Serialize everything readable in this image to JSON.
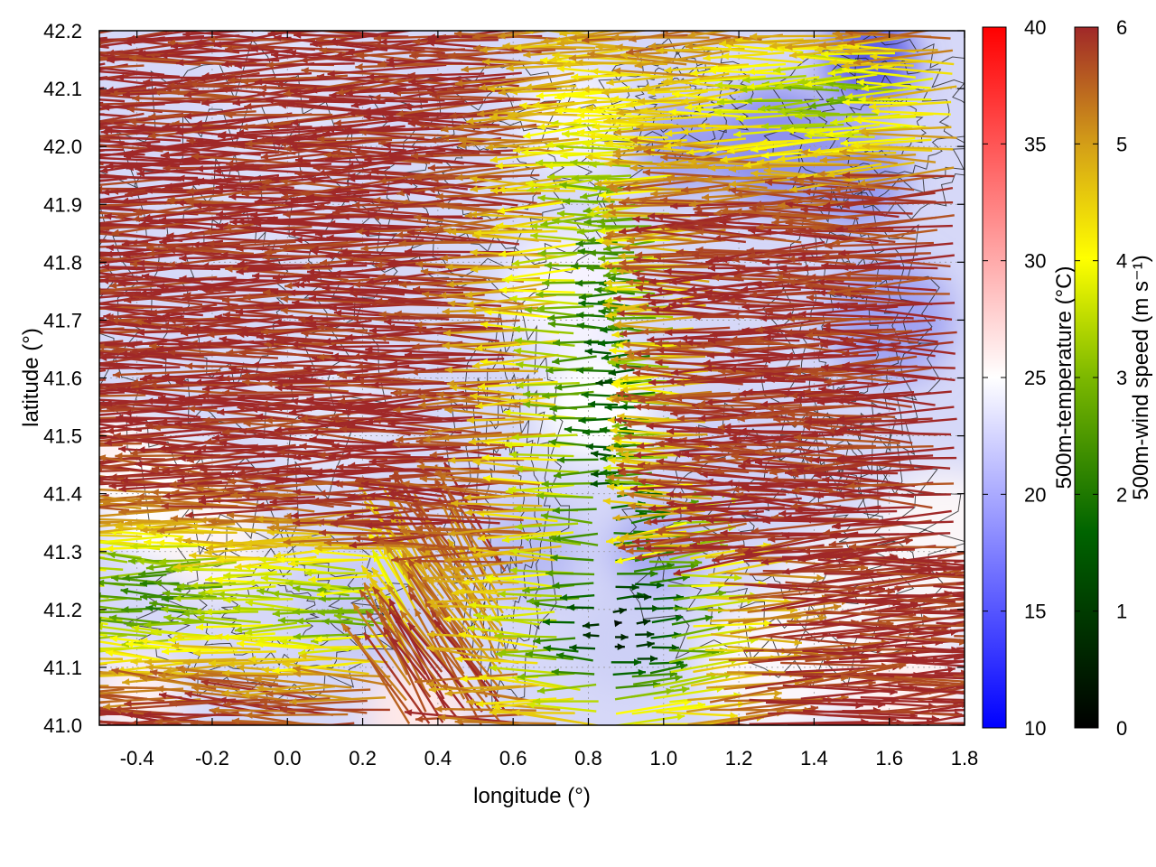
{
  "chart_data": {
    "type": "heatmap",
    "subtype": "vector-field-over-temperature-map",
    "title": "",
    "xlabel": "longitude (°)",
    "ylabel": "latitude (°)",
    "xlim": [
      -0.5,
      1.8
    ],
    "ylim": [
      41.0,
      42.2
    ],
    "xticks": [
      "-0.4",
      "-0.2",
      "0.0",
      "0.2",
      "0.4",
      "0.6",
      "0.8",
      "1.0",
      "1.2",
      "1.4",
      "1.6",
      "1.8"
    ],
    "yticks": [
      "41.0",
      "41.1",
      "41.2",
      "41.3",
      "41.4",
      "41.5",
      "41.6",
      "41.7",
      "41.8",
      "41.9",
      "42.0",
      "42.1",
      "42.2"
    ],
    "grid": true,
    "contours": true,
    "temperature_colorbar": {
      "label": "500m-temperature (°C)",
      "range": [
        10,
        40
      ],
      "ticks": [
        "10",
        "15",
        "20",
        "25",
        "30",
        "35",
        "40"
      ],
      "colors": [
        "#0000ff",
        "#ffffff",
        "#ff0000"
      ]
    },
    "wind_colorbar": {
      "label": "500m-wind speed (m s⁻¹)",
      "range": [
        0,
        6
      ],
      "ticks": [
        "0",
        "1",
        "2",
        "3",
        "4",
        "5",
        "6"
      ],
      "colors": [
        "#000000",
        "#006400",
        "#7cb800",
        "#ffff00",
        "#d4a017",
        "#b8601a",
        "#a02828"
      ]
    },
    "dominant_wind": "westward flow, strongest (~6 m s⁻¹) over most of the domain, weak winds near longitude 0.9–1.0",
    "temperature_pattern": "mostly 18–24 °C, coolest near 1.5°E 42.15°N, warmer bands in the south-west"
  }
}
